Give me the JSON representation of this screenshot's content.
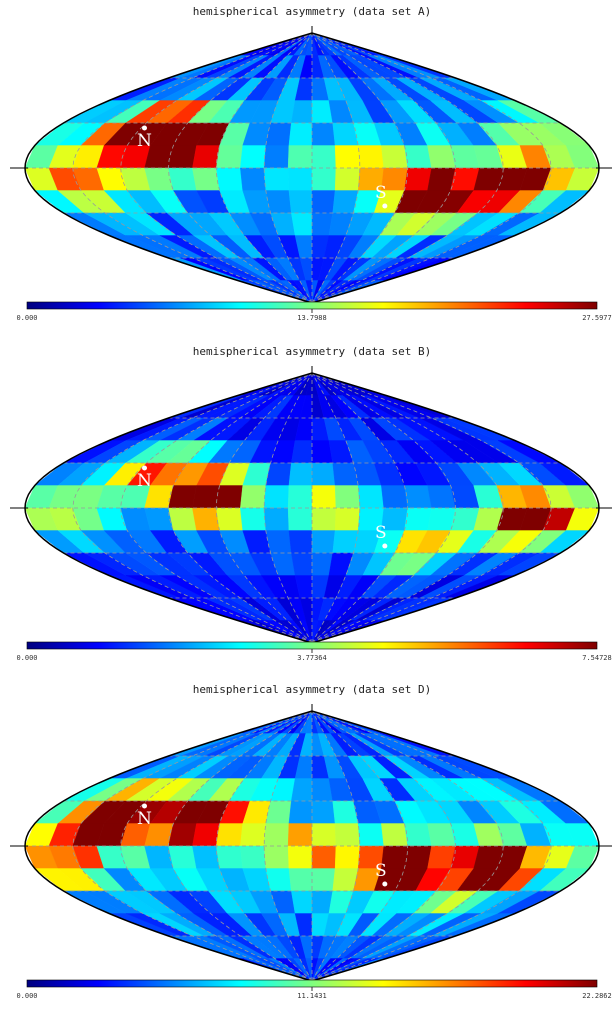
{
  "chart_data": [
    {
      "type": "heatmap",
      "projection": "sinusoidal",
      "title": "hemispherical asymmetry (data set A)",
      "colorbar": {
        "min": "0.000",
        "mid": "13.7988",
        "max": "27.5977",
        "vmax": 27.5977
      },
      "colormap": [
        "#00007f",
        "#0000ff",
        "#007fff",
        "#00ffff",
        "#7fff7f",
        "#ffff00",
        "#ff7f00",
        "#ff0000",
        "#7f0000"
      ],
      "labels": {
        "north": "N",
        "south": "S"
      },
      "pole_positions": {
        "north": {
          "lon": -115,
          "lat": 24
        },
        "south": {
          "lon": 50,
          "lat": -24
        }
      },
      "grid": {
        "nlat": 12,
        "nlon": 24
      },
      "hotspots": [
        {
          "lon": -115,
          "lat": 24,
          "amp": 1.0
        },
        {
          "lon": -80,
          "lat": 15,
          "amp": 0.9
        },
        {
          "lon": 80,
          "lat": -20,
          "amp": 1.0
        },
        {
          "lon": 130,
          "lat": -10,
          "amp": 0.95
        },
        {
          "lon": 30,
          "lat": 0,
          "amp": 0.45
        },
        {
          "lon": -150,
          "lat": -10,
          "amp": 0.5
        },
        {
          "lon": 160,
          "lat": 20,
          "amp": 0.35
        }
      ],
      "base_level": 0.28
    },
    {
      "type": "heatmap",
      "projection": "sinusoidal",
      "title": "hemispherical asymmetry (data set B)",
      "colorbar": {
        "min": "0.000",
        "mid": "3.77364",
        "max": "7.54728",
        "vmax": 7.54728
      },
      "colormap": [
        "#00007f",
        "#0000ff",
        "#007fff",
        "#00ffff",
        "#7fff7f",
        "#ffff00",
        "#ff7f00",
        "#ff0000",
        "#7f0000"
      ],
      "labels": {
        "north": "N",
        "south": "S"
      },
      "pole_positions": {
        "north": {
          "lon": -115,
          "lat": 24
        },
        "south": {
          "lon": 50,
          "lat": -24
        }
      },
      "grid": {
        "nlat": 12,
        "nlon": 24
      },
      "hotspots": [
        {
          "lon": -65,
          "lat": 8,
          "amp": 1.0
        },
        {
          "lon": -110,
          "lat": 24,
          "amp": 0.6
        },
        {
          "lon": 140,
          "lat": -5,
          "amp": 1.0
        },
        {
          "lon": 80,
          "lat": -24,
          "amp": 0.55
        },
        {
          "lon": 10,
          "lat": 0,
          "amp": 0.5
        },
        {
          "lon": -160,
          "lat": -5,
          "amp": 0.45
        }
      ],
      "base_level": 0.18
    },
    {
      "type": "heatmap",
      "projection": "sinusoidal",
      "title": "hemispherical asymmetry (data set D)",
      "colorbar": {
        "min": "0.000",
        "mid": "11.1431",
        "max": "22.2862",
        "vmax": 22.2862
      },
      "colormap": [
        "#00007f",
        "#0000ff",
        "#007fff",
        "#00ffff",
        "#7fff7f",
        "#ffff00",
        "#ff7f00",
        "#ff0000",
        "#7f0000"
      ],
      "labels": {
        "north": "N",
        "south": "S"
      },
      "pole_positions": {
        "north": {
          "lon": -115,
          "lat": 24
        },
        "south": {
          "lon": 50,
          "lat": -24
        }
      },
      "grid": {
        "nlat": 12,
        "nlon": 24
      },
      "hotspots": [
        {
          "lon": -130,
          "lat": 20,
          "amp": 1.0
        },
        {
          "lon": -70,
          "lat": 18,
          "amp": 0.95
        },
        {
          "lon": 60,
          "lat": -15,
          "amp": 0.95
        },
        {
          "lon": 120,
          "lat": -15,
          "amp": 1.0
        },
        {
          "lon": 0,
          "lat": 0,
          "amp": 0.45
        },
        {
          "lon": -160,
          "lat": -10,
          "amp": 0.5
        }
      ],
      "base_level": 0.3
    }
  ]
}
